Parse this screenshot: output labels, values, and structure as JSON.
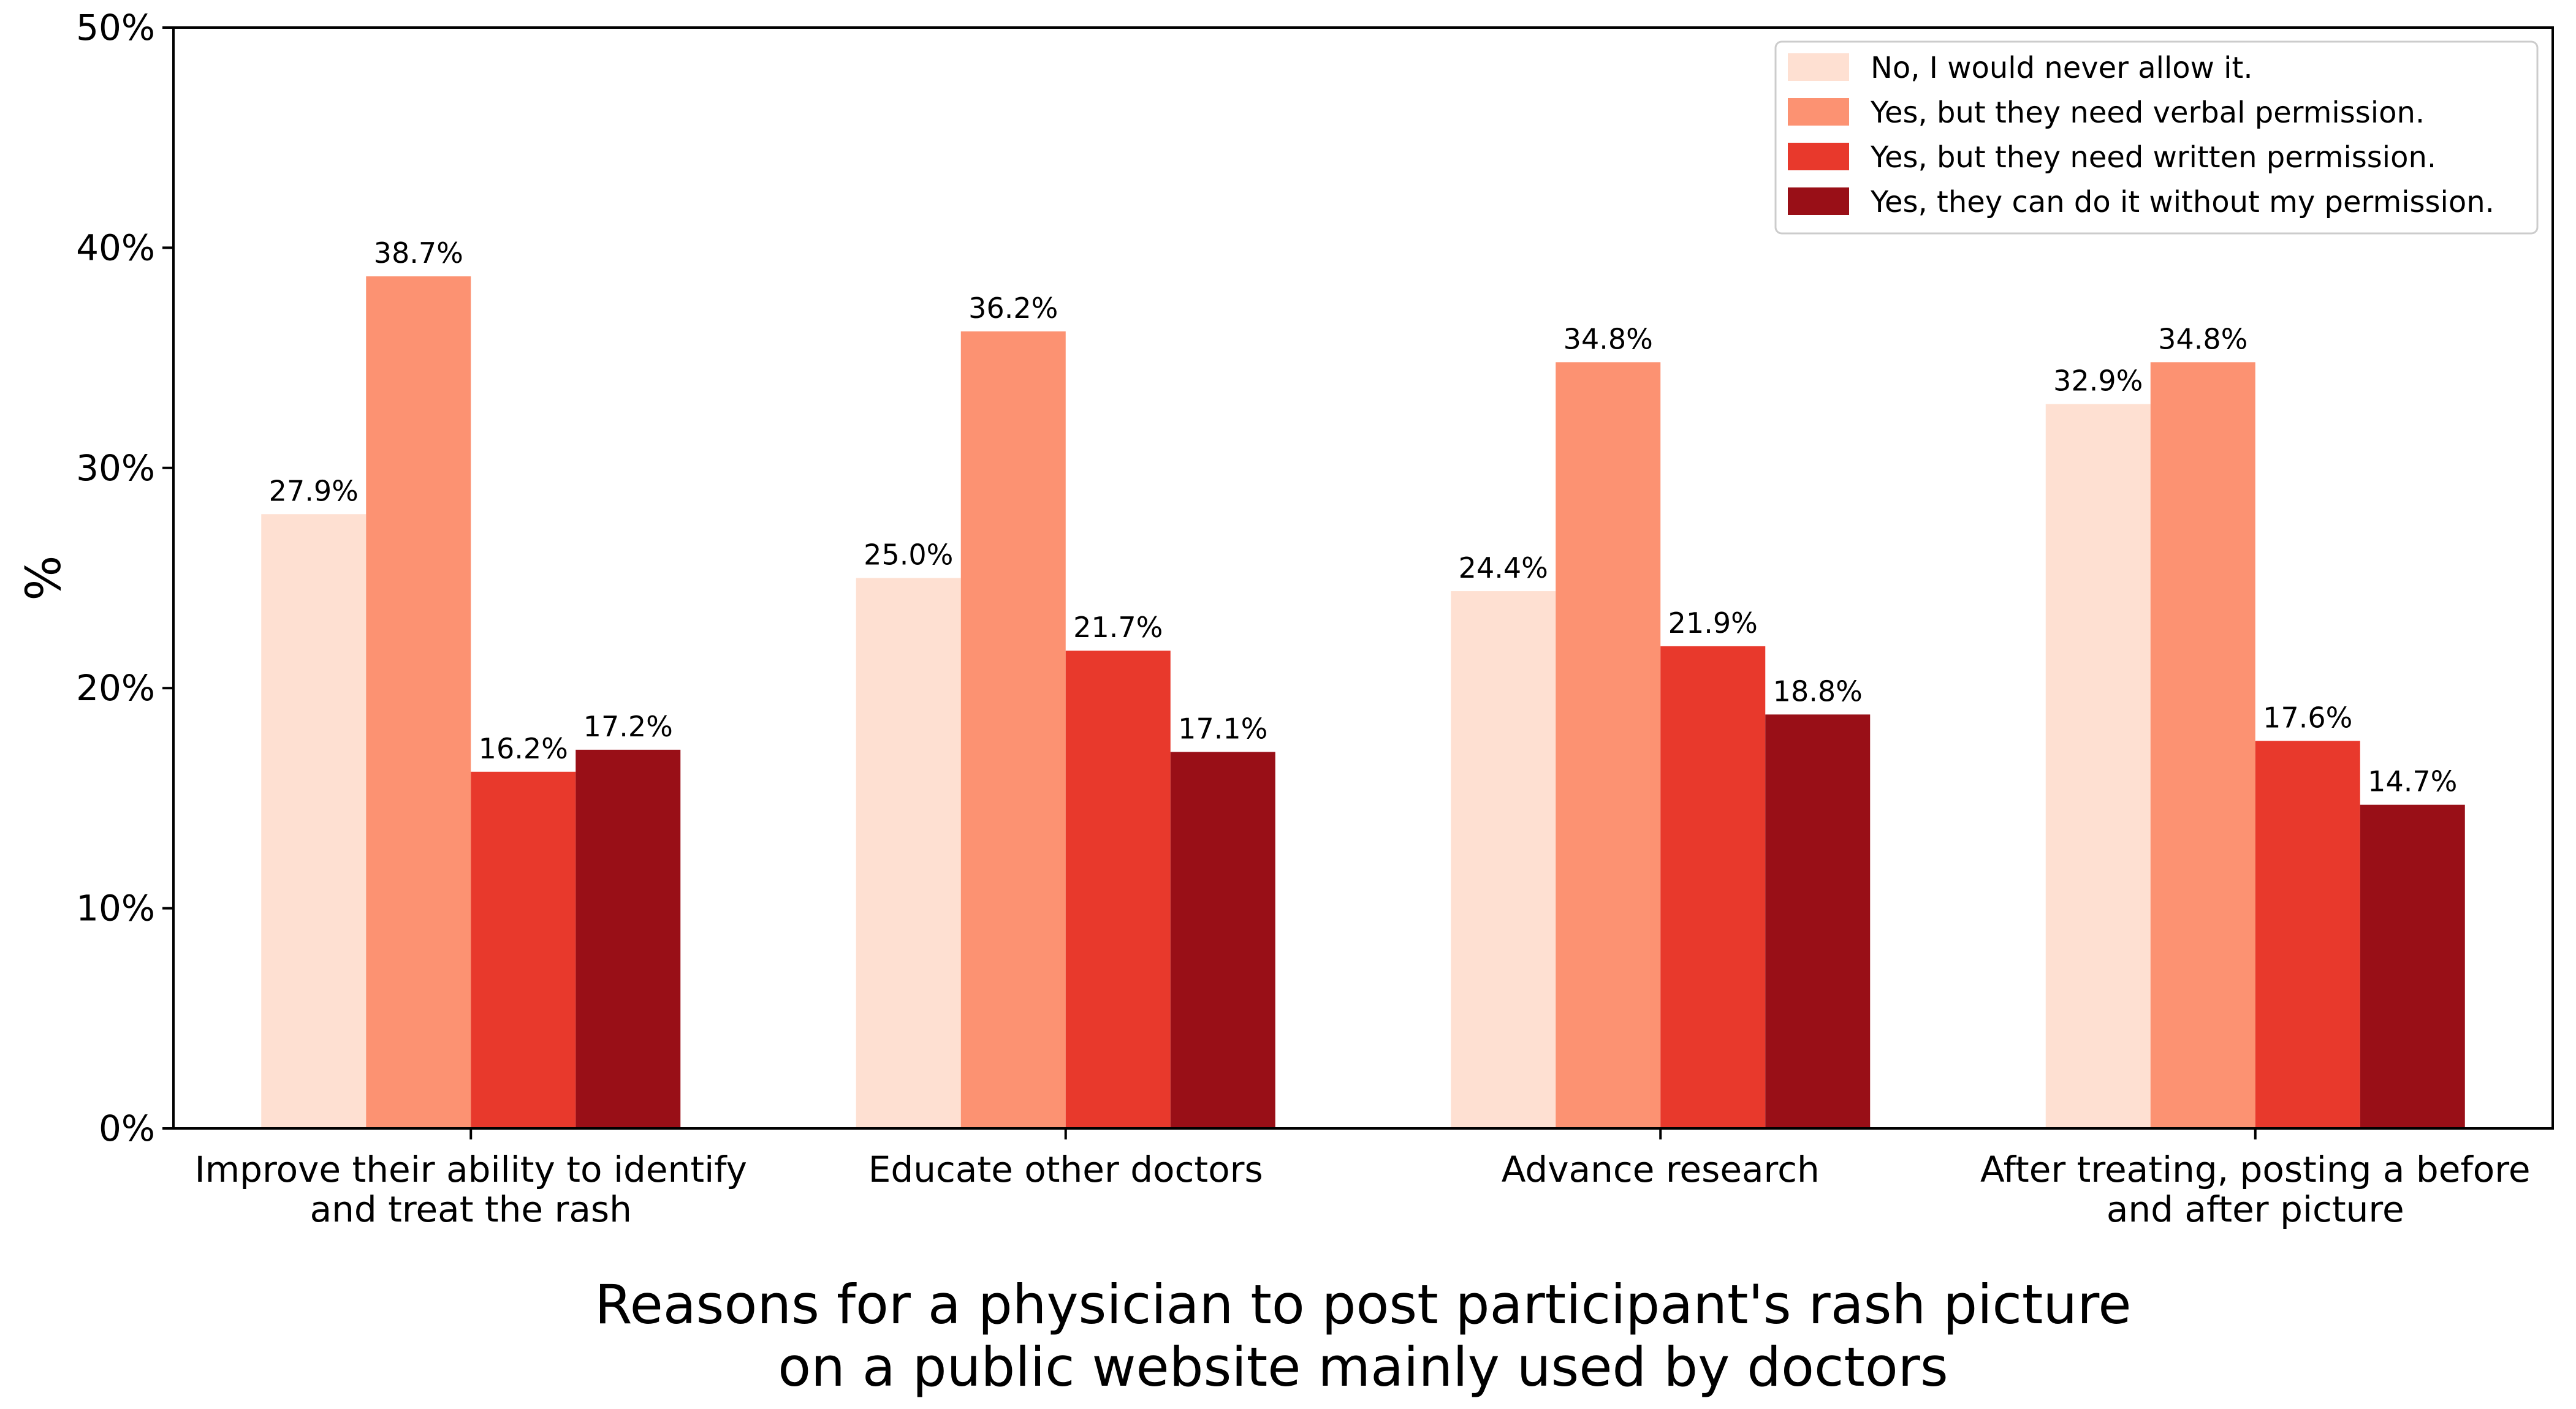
{
  "chart_data": {
    "type": "bar",
    "title": "",
    "xlabel": "Reasons for a physician to post participant's rash picture on a public website mainly used by doctors",
    "xlabel_lines": [
      "Reasons for a physician to post participant's rash picture",
      "on a public website mainly used by doctors"
    ],
    "ylabel": "%",
    "ylim": [
      0,
      50
    ],
    "y_ticks": [
      0,
      10,
      20,
      30,
      40,
      50
    ],
    "y_tick_labels": [
      "0%",
      "10%",
      "20%",
      "30%",
      "40%",
      "50%"
    ],
    "categories": [
      "Improve their ability to identify and treat the rash",
      "Educate other doctors",
      "Advance research",
      "After treating, posting a before and after picture"
    ],
    "category_label_lines": [
      [
        "Improve their ability to identify",
        "and treat the rash"
      ],
      [
        "Educate other doctors"
      ],
      [
        "Advance research"
      ],
      [
        "After treating, posting a before",
        "and after picture"
      ]
    ],
    "series": [
      {
        "name": "No, I would never allow it.",
        "color": "#fee0d2",
        "values": [
          27.9,
          25.0,
          24.4,
          32.9
        ],
        "labels": [
          "27.9%",
          "25.0%",
          "24.4%",
          "32.9%"
        ]
      },
      {
        "name": "Yes, but they need verbal permission.",
        "color": "#fc9272",
        "values": [
          38.7,
          36.2,
          34.8,
          34.8
        ],
        "labels": [
          "38.7%",
          "36.2%",
          "34.8%",
          "34.8%"
        ]
      },
      {
        "name": "Yes, but they need written permission.",
        "color": "#e8392c",
        "values": [
          16.2,
          21.7,
          21.9,
          17.6
        ],
        "labels": [
          "16.2%",
          "21.7%",
          "21.9%",
          "17.6%"
        ]
      },
      {
        "name": "Yes, they can do it without my permission.",
        "color": "#990f17",
        "values": [
          17.2,
          17.1,
          18.8,
          14.7
        ],
        "labels": [
          "17.2%",
          "17.1%",
          "18.8%",
          "14.7%"
        ]
      }
    ],
    "legend_position": "top-right",
    "grid": false
  }
}
